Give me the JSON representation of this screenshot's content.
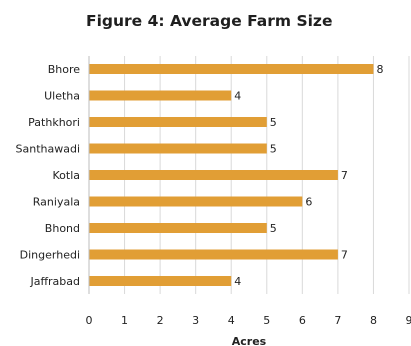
{
  "chart_data": {
    "type": "bar",
    "orientation": "horizontal",
    "title": "Figure 4: Average Farm Size",
    "xlabel": "Acres",
    "ylabel": "",
    "categories": [
      "Bhore",
      "Uletha",
      "Pathkhori",
      "Santhawadi",
      "Kotla",
      "Raniyala",
      "Bhond",
      "Dingerhedi",
      "Jaffrabad"
    ],
    "values": [
      8,
      4,
      5,
      5,
      7,
      6,
      5,
      7,
      4
    ],
    "data_labels": [
      "8",
      "4",
      "5",
      "5",
      "7",
      "6",
      "5",
      "7",
      "4"
    ],
    "xlim": [
      0,
      9
    ],
    "xticks": [
      "0",
      "1",
      "2",
      "3",
      "4",
      "5",
      "6",
      "7",
      "8",
      "9"
    ],
    "grid": "vertical",
    "bar_color": "#E19E35",
    "gridline_color": "#d9d9d9",
    "legend": "none"
  }
}
